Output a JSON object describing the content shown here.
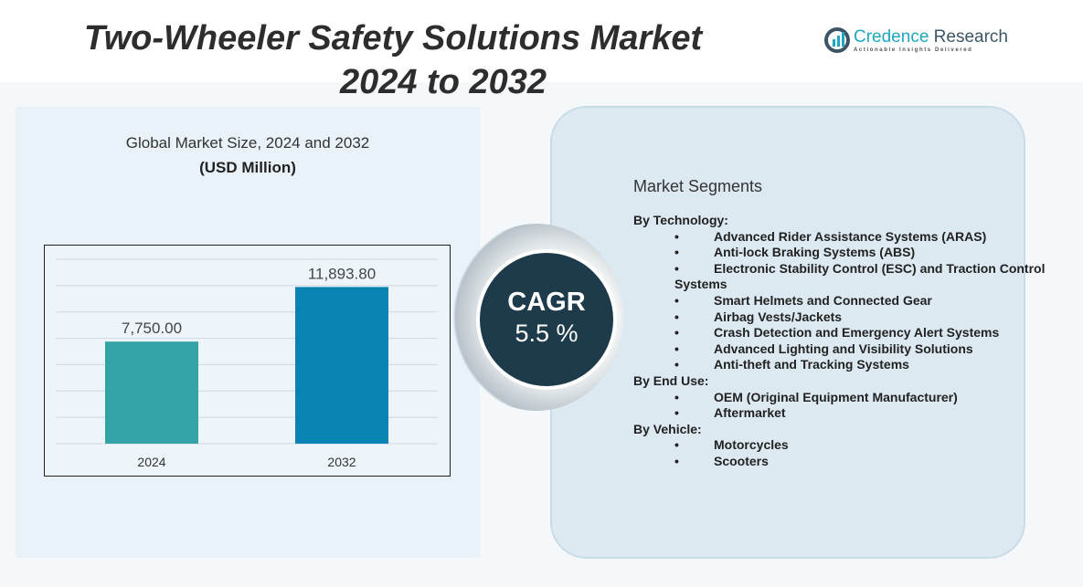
{
  "title": {
    "line1": "Two-Wheeler Safety Solutions Market",
    "line2": "2024 to 2032"
  },
  "logo": {
    "name1": "Credence",
    "name2": " Research",
    "tagline": "Actionable Insights Delivered"
  },
  "left_panel": {
    "title": "Global Market Size, 2024 and 2032",
    "subtitle": "(USD Million)"
  },
  "chart_data": {
    "type": "bar",
    "categories": [
      "2024",
      "2032"
    ],
    "values": [
      7750.0,
      11893.8
    ],
    "labels": [
      "7,750.00",
      "11,893.80"
    ],
    "colors": [
      "#33a3a5",
      "#0a82b2"
    ],
    "ylim": [
      0,
      14000
    ],
    "grid": true,
    "title": "Global Market Size, 2024 and 2032",
    "ylabel": "USD Million"
  },
  "cagr": {
    "label": "CAGR",
    "value": "5.5 %"
  },
  "segments": {
    "heading": "Market Segments",
    "groups": [
      {
        "name": "By Technology:",
        "items": [
          "Advanced Rider Assistance  Systems (ARAS)",
          "Anti-lock Braking Systems (ABS)",
          "Electronic Stability Control (ESC) and Traction Control Systems",
          "Smart Helmets and Connected Gear",
          "Airbag Vests/Jackets",
          "Crash Detection  and Emergency Alert Systems",
          "Advanced Lighting and Visibility Solutions",
          "Anti-theft and Tracking Systems"
        ]
      },
      {
        "name": "By End Use:",
        "items": [
          "OEM (Original Equipment Manufacturer)",
          "Aftermarket"
        ]
      },
      {
        "name": "By Vehicle:",
        "items": [
          "Motorcycles",
          "Scooters"
        ]
      }
    ],
    "bullet": "•"
  }
}
